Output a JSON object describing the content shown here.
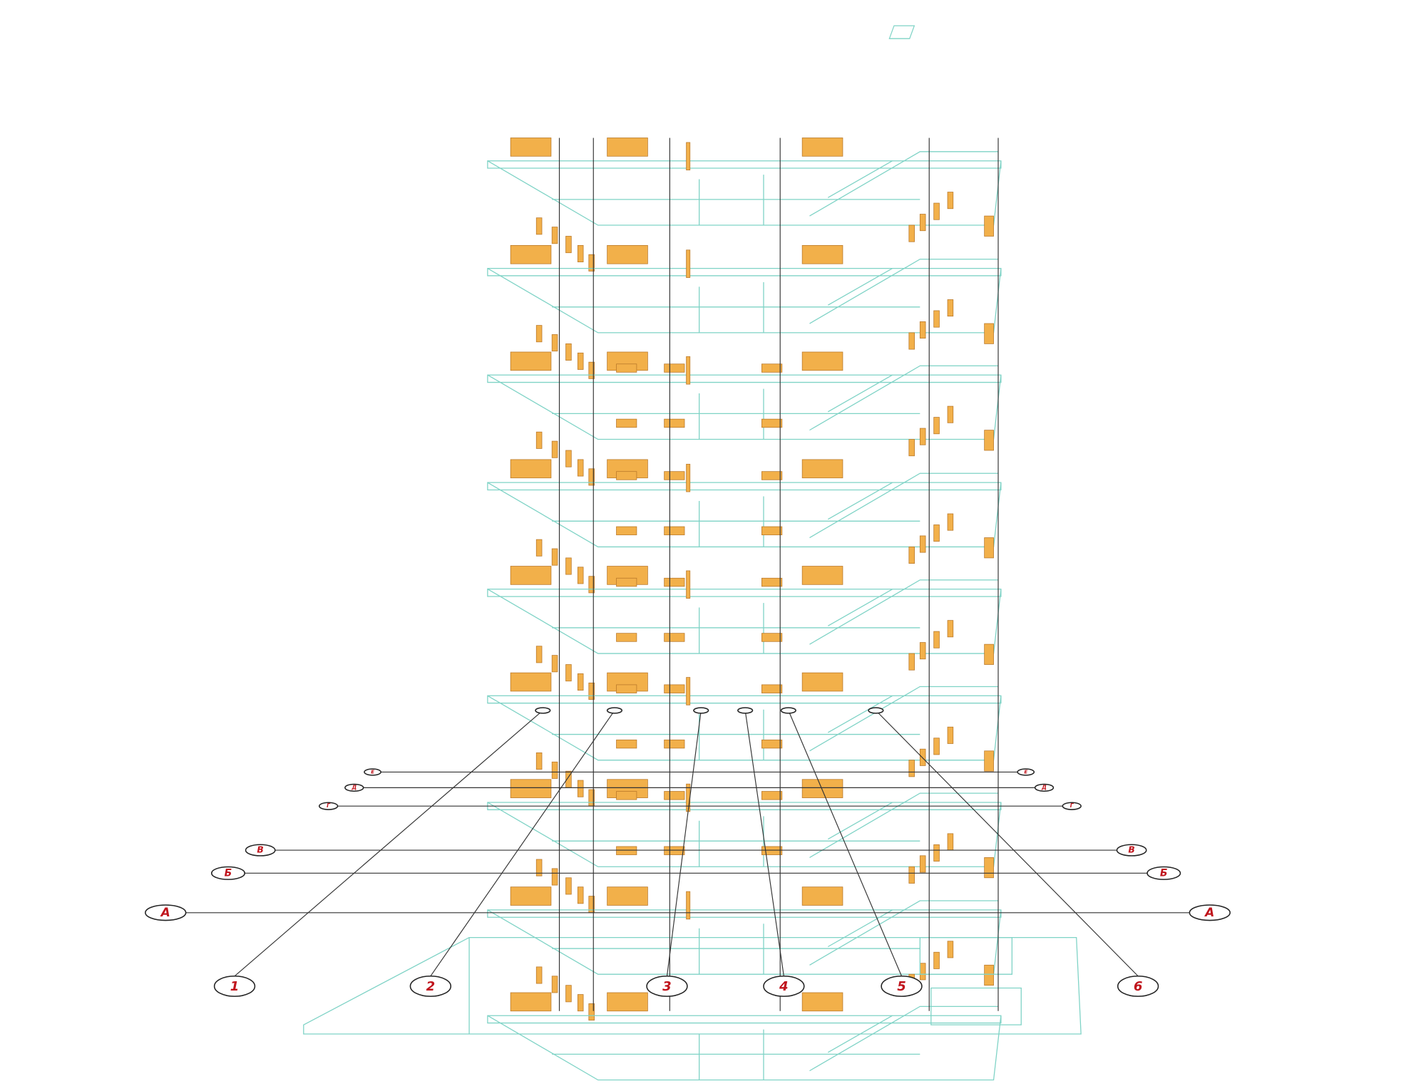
{
  "number_axes": [
    "1",
    "2",
    "3",
    "4",
    "5",
    "6"
  ],
  "letter_axes": [
    "А",
    "Б",
    "В",
    "Г",
    "Д",
    "Е"
  ]
}
